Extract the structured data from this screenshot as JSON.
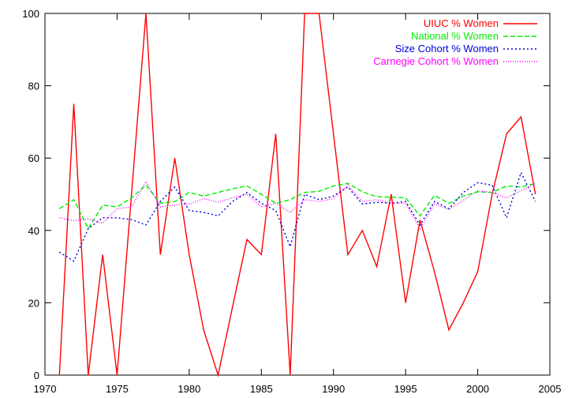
{
  "chart_data": {
    "type": "line",
    "title": "",
    "xlabel": "",
    "ylabel": "",
    "xlim": [
      1970,
      2005
    ],
    "ylim": [
      0,
      100
    ],
    "x_ticks": [
      1970,
      1975,
      1980,
      1985,
      1990,
      1995,
      2000,
      2005
    ],
    "y_ticks": [
      0,
      20,
      40,
      60,
      80,
      100
    ],
    "x_tick_labels": [
      "1970",
      "1975",
      "1980",
      "1985",
      "1990",
      "1995",
      "2000",
      "2005"
    ],
    "y_tick_labels": [
      "0",
      "20",
      "40",
      "60",
      "80",
      "100"
    ],
    "grid": false,
    "legend_position": "top-right",
    "x": [
      1971,
      1972,
      1973,
      1974,
      1975,
      1976,
      1977,
      1978,
      1979,
      1980,
      1981,
      1982,
      1983,
      1984,
      1985,
      1986,
      1987,
      1988,
      1989,
      1990,
      1991,
      1992,
      1993,
      1994,
      1995,
      1996,
      1997,
      1998,
      1999,
      2000,
      2001,
      2002,
      2003,
      2004
    ],
    "series": [
      {
        "name": "UIUC % Women",
        "color": "#ff0000",
        "dash": "solid",
        "values": [
          0,
          75,
          0,
          33.3,
          0,
          50,
          100,
          33.3,
          60,
          33.3,
          12.5,
          0,
          18.8,
          37.5,
          33.3,
          66.7,
          0,
          100,
          100,
          66.7,
          33.3,
          40,
          30,
          50,
          20,
          42.9,
          28.6,
          12.5,
          20,
          28.6,
          50,
          66.7,
          71.4,
          50
        ]
      },
      {
        "name": "National % Women",
        "color": "#00ee00",
        "dash": "dashed",
        "values": [
          46,
          48.5,
          40.5,
          47,
          46.5,
          49,
          52.5,
          47.5,
          48,
          50.5,
          49.5,
          50.5,
          51.5,
          52.3,
          50,
          47.5,
          48.5,
          50.5,
          50.8,
          52.3,
          53,
          50.7,
          49.3,
          49.2,
          49,
          44,
          49.7,
          47.5,
          49.5,
          50.7,
          50.5,
          52.3,
          52,
          53
        ]
      },
      {
        "name": "Size Cohort % Women",
        "color": "#0000dd",
        "dash": "dotted",
        "values": [
          34,
          31.5,
          40.5,
          43.5,
          43.5,
          43,
          41.5,
          48,
          52,
          45.5,
          45,
          44,
          48,
          50.5,
          47.5,
          45.5,
          35.5,
          50,
          48.5,
          49.5,
          52,
          47.3,
          47.8,
          47.5,
          48,
          41.5,
          48,
          46,
          50.5,
          53.2,
          52.5,
          43.5,
          56,
          48
        ]
      },
      {
        "name": "Carnegie Cohort % Women",
        "color": "#ff00ff",
        "dash": "dense-dotted",
        "values": [
          43.5,
          42.7,
          43.2,
          42,
          46,
          46.5,
          53.5,
          46.5,
          47,
          47.3,
          48.8,
          47.8,
          49,
          50,
          46.5,
          47.5,
          45,
          48.5,
          48,
          48.8,
          52.5,
          48,
          48.5,
          47.5,
          47.5,
          40.5,
          47.3,
          45.8,
          48.3,
          51,
          50.5,
          49,
          51,
          53
        ]
      }
    ]
  }
}
